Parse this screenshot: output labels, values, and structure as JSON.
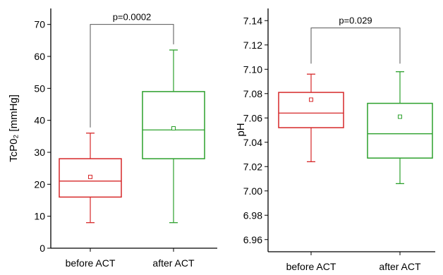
{
  "chart_data": [
    {
      "type": "box",
      "ylabel": "TcP0₂ [mmHg]",
      "ylim": [
        0,
        75
      ],
      "yticks": [
        0,
        10,
        20,
        30,
        40,
        50,
        60,
        70
      ],
      "tick_decimals": 0,
      "categories": [
        "before ACT",
        "after ACT"
      ],
      "boxes": [
        {
          "category": "before ACT",
          "min": 8,
          "q1": 16,
          "median": 21,
          "q3": 28,
          "max": 36,
          "mean": 22.3,
          "color": "#d62728"
        },
        {
          "category": "after ACT",
          "min": 8,
          "q1": 28,
          "median": 37,
          "q3": 49,
          "max": 62,
          "mean": 37.5,
          "color": "#2ca02c"
        }
      ],
      "annotation": {
        "text": "p=0.0002",
        "y": 70,
        "drop_to": [
          36,
          62
        ]
      }
    },
    {
      "type": "box",
      "ylabel": "pH",
      "ylim": [
        6.95,
        7.15
      ],
      "yticks": [
        6.96,
        6.98,
        7.0,
        7.02,
        7.04,
        7.06,
        7.08,
        7.1,
        7.12,
        7.14
      ],
      "tick_decimals": 2,
      "categories": [
        "before ACT",
        "after ACT"
      ],
      "boxes": [
        {
          "category": "before ACT",
          "min": 7.024,
          "q1": 7.052,
          "median": 7.064,
          "q3": 7.081,
          "max": 7.096,
          "mean": 7.075,
          "color": "#d62728"
        },
        {
          "category": "after ACT",
          "min": 7.006,
          "q1": 7.027,
          "median": 7.047,
          "q3": 7.072,
          "max": 7.098,
          "mean": 7.061,
          "color": "#2ca02c"
        }
      ],
      "annotation": {
        "text": "p=0.029",
        "y": 7.134,
        "drop_to": [
          7.1,
          7.1
        ]
      }
    }
  ]
}
